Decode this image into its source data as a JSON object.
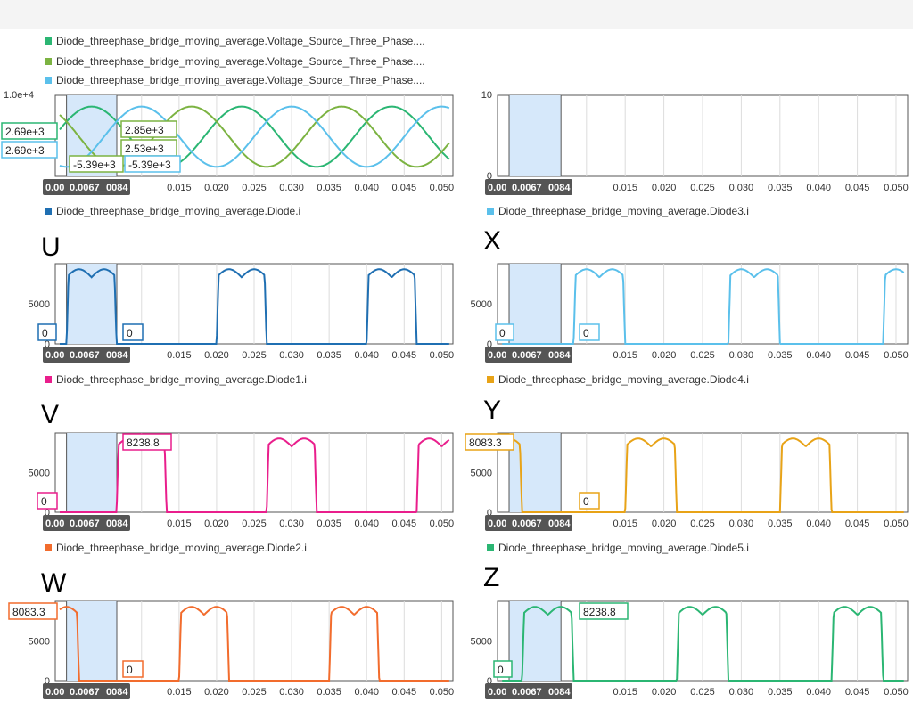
{
  "chart_data": [
    {
      "type": "line",
      "panel_label": "",
      "series": [
        {
          "name": "Diode_threephase_bridge_moving_average.Voltage_Source_Three_Phase....",
          "color": "#2bb673",
          "phase_deg": 30
        },
        {
          "name": "Diode_threephase_bridge_moving_average.Voltage_Source_Three_Phase....",
          "color": "#7cb342",
          "phase_deg": 150
        },
        {
          "name": "Diode_threephase_bridge_moving_average.Voltage_Source_Three_Phase....",
          "color": "#5bc0eb",
          "phase_deg": 270
        }
      ],
      "amplitude": 5390,
      "frequency_hz": 50,
      "x_range": [
        -0.0015,
        0.0515
      ],
      "y_range": [
        -6200,
        8300
      ],
      "y_ticks": [
        "1.0e+4"
      ],
      "x_ticks": [
        "0.00",
        "0.0067",
        "0084",
        "0.015",
        "0.020",
        "0.025",
        "0.030",
        "0.035",
        "0.040",
        "0.045",
        "0.050"
      ],
      "data_labels": [
        "2.69e+3",
        "2.69e+3",
        "2.85e+3",
        "2.53e+3",
        "-5.39e+3",
        "-5.39e+3"
      ],
      "cursor_window": [
        0,
        0.0067
      ],
      "grid": true
    },
    {
      "type": "line",
      "panel_label": "",
      "series": [],
      "x_range": [
        -0.0015,
        0.0515
      ],
      "y_range": [
        0,
        10
      ],
      "y_ticks": [
        "10",
        "0"
      ],
      "x_ticks": [
        "0.00",
        "0.0067",
        "0084",
        "0.015",
        "0.020",
        "0.025",
        "0.030",
        "0.035",
        "0.040",
        "0.045",
        "0.050"
      ],
      "data_labels": [],
      "cursor_window": [
        0,
        0.0067
      ],
      "grid": true
    },
    {
      "type": "line",
      "panel_label": "U",
      "series": [
        {
          "name": "Diode_threephase_bridge_moving_average.Diode.i",
          "color": "#1f6fb2",
          "on_start": 0,
          "period": 0.02,
          "width": 0.00667
        }
      ],
      "peak": 9300,
      "dip": 8300,
      "x_range": [
        -0.0015,
        0.0515
      ],
      "y_range": [
        0,
        10000
      ],
      "y_ticks": [
        "5000",
        "0"
      ],
      "x_ticks": [
        "0.00",
        "0.0067",
        "0084",
        "0.015",
        "0.020",
        "0.025",
        "0.030",
        "0.035",
        "0.040",
        "0.045",
        "0.050"
      ],
      "data_labels": [
        "0",
        "0"
      ],
      "cursor_window": [
        0,
        0.0067
      ],
      "grid": true
    },
    {
      "type": "line",
      "panel_label": "X",
      "series": [
        {
          "name": "Diode_threephase_bridge_moving_average.Diode3.i",
          "color": "#5bc0eb",
          "on_start": 0.00833,
          "period": 0.02,
          "width": 0.00667
        }
      ],
      "peak": 9300,
      "dip": 8300,
      "x_range": [
        -0.0015,
        0.0515
      ],
      "y_range": [
        0,
        10000
      ],
      "y_ticks": [
        "5000",
        "0"
      ],
      "x_ticks": [
        "0.00",
        "0.0067",
        "0084",
        "0.015",
        "0.020",
        "0.025",
        "0.030",
        "0.035",
        "0.040",
        "0.045",
        "0.050"
      ],
      "data_labels": [
        "0",
        "0"
      ],
      "cursor_window": [
        0,
        0.0067
      ],
      "grid": true
    },
    {
      "type": "line",
      "panel_label": "V",
      "series": [
        {
          "name": "Diode_threephase_bridge_moving_average.Diode1.i",
          "color": "#e91e8c",
          "on_start": 0.00667,
          "period": 0.02,
          "width": 0.00667
        }
      ],
      "peak": 9300,
      "dip": 8300,
      "x_range": [
        -0.0015,
        0.0515
      ],
      "y_range": [
        0,
        10000
      ],
      "y_ticks": [
        "5000",
        "0"
      ],
      "x_ticks": [
        "0.00",
        "0.0067",
        "0084",
        "0.015",
        "0.020",
        "0.025",
        "0.030",
        "0.035",
        "0.040",
        "0.045",
        "0.050"
      ],
      "data_labels": [
        "0",
        "8238.8"
      ],
      "cursor_window": [
        0,
        0.0067
      ],
      "grid": true
    },
    {
      "type": "line",
      "panel_label": "Y",
      "series": [
        {
          "name": "Diode_threephase_bridge_moving_average.Diode4.i",
          "color": "#e8a317",
          "on_start": -0.005,
          "period": 0.02,
          "width": 0.00667
        }
      ],
      "peak": 9300,
      "dip": 8300,
      "x_range": [
        -0.0015,
        0.0515
      ],
      "y_range": [
        0,
        10000
      ],
      "y_ticks": [
        "5000",
        "0"
      ],
      "x_ticks": [
        "0.00",
        "0.0067",
        "0084",
        "0.015",
        "0.020",
        "0.025",
        "0.030",
        "0.035",
        "0.040",
        "0.045",
        "0.050"
      ],
      "data_labels": [
        "8083.3",
        "0"
      ],
      "cursor_window": [
        0,
        0.0067
      ],
      "grid": true
    },
    {
      "type": "line",
      "panel_label": "W",
      "series": [
        {
          "name": "Diode_threephase_bridge_moving_average.Diode2.i",
          "color": "#f26c2d",
          "on_start": -0.005,
          "period": 0.02,
          "width": 0.00667
        }
      ],
      "peak": 9300,
      "dip": 8300,
      "x_range": [
        -0.0015,
        0.0515
      ],
      "y_range": [
        0,
        10000
      ],
      "y_ticks": [
        "5000",
        "0"
      ],
      "x_ticks": [
        "0.00",
        "0.0067",
        "0084",
        "0.015",
        "0.020",
        "0.025",
        "0.030",
        "0.035",
        "0.040",
        "0.045",
        "0.050"
      ],
      "data_labels": [
        "8083.3",
        "0"
      ],
      "cursor_window": [
        0,
        0.0067
      ],
      "grid": true
    },
    {
      "type": "line",
      "panel_label": "Z",
      "series": [
        {
          "name": "Diode_threephase_bridge_moving_average.Diode5.i",
          "color": "#2bb673",
          "on_start": 0.00167,
          "period": 0.02,
          "width": 0.00667
        }
      ],
      "peak": 9300,
      "dip": 8300,
      "x_range": [
        -0.0015,
        0.0515
      ],
      "y_range": [
        0,
        10000
      ],
      "y_ticks": [
        "5000",
        "0"
      ],
      "x_ticks": [
        "0.00",
        "0.0067",
        "0084",
        "0.015",
        "0.020",
        "0.025",
        "0.030",
        "0.035",
        "0.040",
        "0.045",
        "0.050"
      ],
      "data_labels": [
        "0",
        "8238.8"
      ],
      "cursor_window": [
        0,
        0.0067
      ],
      "grid": true
    }
  ]
}
